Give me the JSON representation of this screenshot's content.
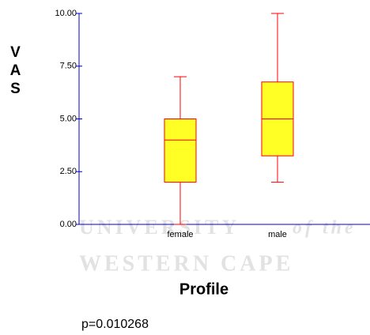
{
  "chart_data": {
    "type": "box",
    "y_label": "VAS",
    "x_label": "Profile",
    "note": "p=0.010268",
    "watermark": {
      "line1": "UNIVERSITY",
      "line1_italic": "of the",
      "line2": "WESTERN CAPE"
    },
    "categories": [
      "female",
      "male"
    ],
    "boxes": [
      {
        "min": 0,
        "q1": 2,
        "median": 4,
        "q3": 5,
        "max": 7
      },
      {
        "min": 2,
        "q1": 3.25,
        "median": 5,
        "q3": 6.75,
        "max": 10
      }
    ],
    "box_color": "#ffff00",
    "line_color": "#ff0000",
    "ylim": [
      0,
      10
    ],
    "yticks": [
      {
        "value": 0,
        "label": "0.00"
      },
      {
        "value": 2.5,
        "label": "2.50"
      },
      {
        "value": 5,
        "label": "5.00"
      },
      {
        "value": 7.5,
        "label": "7.50"
      },
      {
        "value": 10,
        "label": "10.00"
      }
    ]
  }
}
